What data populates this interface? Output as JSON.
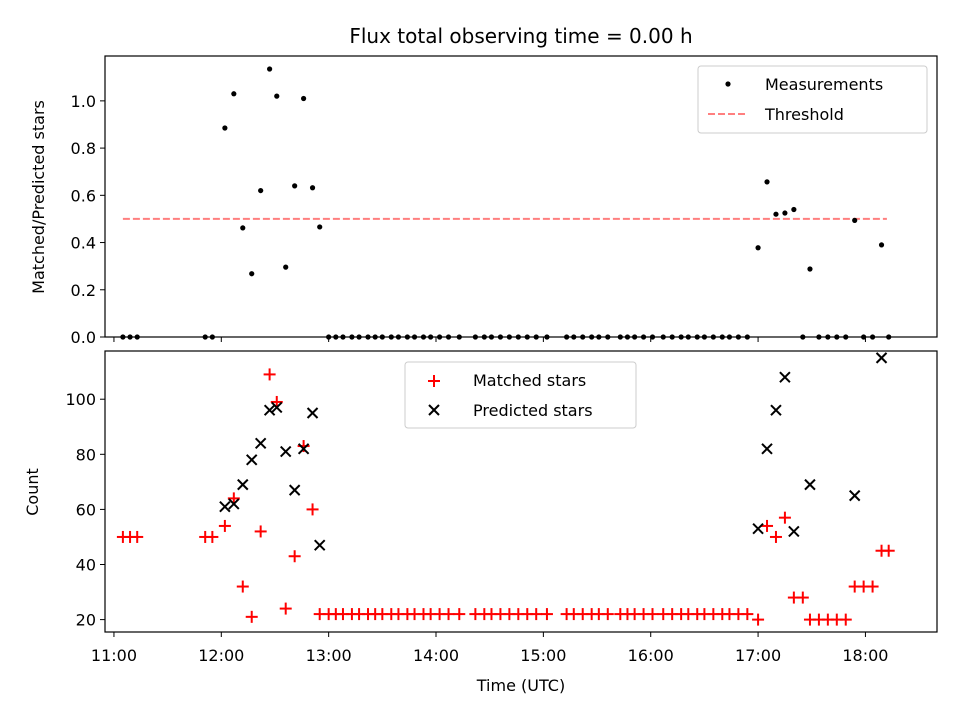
{
  "chart_data": [
    {
      "type": "scatter",
      "title": "Flux total observing time = 0.00 h",
      "xlabel": "",
      "ylabel": "Matched/Predicted stars",
      "xlim": [
        "10:55",
        "18:40"
      ],
      "ylim": [
        0,
        1.19
      ],
      "yticks": [
        0.0,
        0.2,
        0.4,
        0.6,
        0.8,
        1.0
      ],
      "ytick_labels": [
        "0.0",
        "0.2",
        "0.4",
        "0.6",
        "0.8",
        "1.0"
      ],
      "xticks": [
        "11:00",
        "12:00",
        "13:00",
        "14:00",
        "15:00",
        "16:00",
        "17:00",
        "18:00"
      ],
      "legend_position": "top-right",
      "legend": [
        {
          "label": "Measurements",
          "marker": "dot",
          "color": "#000000"
        },
        {
          "label": "Threshold",
          "marker": "dashed-line",
          "color": "#ff7f7f"
        }
      ],
      "threshold": {
        "value": 0.5,
        "x": [
          "11:05",
          "18:12"
        ],
        "color": "#ff7f7f"
      },
      "series": [
        {
          "name": "Measurements",
          "color": "#000000",
          "points": [
            [
              "11:05",
              0.0
            ],
            [
              "11:09",
              0.0
            ],
            [
              "11:13",
              0.0
            ],
            [
              "11:51",
              0.0
            ],
            [
              "11:55",
              0.0
            ],
            [
              "12:02",
              0.885
            ],
            [
              "12:07",
              1.03
            ],
            [
              "12:12",
              0.462
            ],
            [
              "12:17",
              0.268
            ],
            [
              "12:22",
              0.62
            ],
            [
              "12:27",
              1.135
            ],
            [
              "12:31",
              1.02
            ],
            [
              "12:36",
              0.296
            ],
            [
              "12:41",
              0.64
            ],
            [
              "12:46",
              1.01
            ],
            [
              "12:51",
              0.632
            ],
            [
              "12:55",
              0.466
            ],
            [
              "13:00",
              0.0
            ],
            [
              "13:04",
              0.0
            ],
            [
              "13:08",
              0.0
            ],
            [
              "13:13",
              0.0
            ],
            [
              "13:17",
              0.0
            ],
            [
              "13:22",
              0.0
            ],
            [
              "13:26",
              0.0
            ],
            [
              "13:30",
              0.0
            ],
            [
              "13:35",
              0.0
            ],
            [
              "13:39",
              0.0
            ],
            [
              "13:44",
              0.0
            ],
            [
              "13:48",
              0.0
            ],
            [
              "13:53",
              0.0
            ],
            [
              "13:57",
              0.0
            ],
            [
              "14:02",
              0.0
            ],
            [
              "14:07",
              0.0
            ],
            [
              "14:13",
              0.0
            ],
            [
              "14:22",
              0.0
            ],
            [
              "14:27",
              0.0
            ],
            [
              "14:31",
              0.0
            ],
            [
              "14:36",
              0.0
            ],
            [
              "14:41",
              0.0
            ],
            [
              "14:46",
              0.0
            ],
            [
              "14:51",
              0.0
            ],
            [
              "14:56",
              0.0
            ],
            [
              "15:02",
              0.0
            ],
            [
              "15:13",
              0.0
            ],
            [
              "15:17",
              0.0
            ],
            [
              "15:22",
              0.0
            ],
            [
              "15:27",
              0.0
            ],
            [
              "15:31",
              0.0
            ],
            [
              "15:36",
              0.0
            ],
            [
              "15:43",
              0.0
            ],
            [
              "15:47",
              0.0
            ],
            [
              "15:51",
              0.0
            ],
            [
              "15:56",
              0.0
            ],
            [
              "16:01",
              0.0
            ],
            [
              "16:07",
              0.0
            ],
            [
              "16:12",
              0.0
            ],
            [
              "16:17",
              0.0
            ],
            [
              "16:21",
              0.0
            ],
            [
              "16:26",
              0.0
            ],
            [
              "16:30",
              0.0
            ],
            [
              "16:35",
              0.0
            ],
            [
              "16:40",
              0.0
            ],
            [
              "16:44",
              0.0
            ],
            [
              "16:49",
              0.0
            ],
            [
              "16:54",
              0.0
            ],
            [
              "17:00",
              0.378
            ],
            [
              "17:05",
              0.657
            ],
            [
              "17:10",
              0.52
            ],
            [
              "17:15",
              0.525
            ],
            [
              "17:20",
              0.54
            ],
            [
              "17:25",
              0.0
            ],
            [
              "17:29",
              0.288
            ],
            [
              "17:34",
              0.0
            ],
            [
              "17:39",
              0.0
            ],
            [
              "17:44",
              0.0
            ],
            [
              "17:49",
              0.0
            ],
            [
              "17:54",
              0.494
            ],
            [
              "17:59",
              0.0
            ],
            [
              "18:04",
              0.0
            ],
            [
              "18:09",
              0.39
            ],
            [
              "18:13",
              0.0
            ]
          ]
        }
      ]
    },
    {
      "type": "scatter",
      "title": "",
      "xlabel": "Time (UTC)",
      "ylabel": "Count",
      "xlim": [
        "10:55",
        "18:40"
      ],
      "ylim": [
        15.5,
        117.5
      ],
      "yticks": [
        20,
        40,
        60,
        80,
        100
      ],
      "ytick_labels": [
        "20",
        "40",
        "60",
        "80",
        "100"
      ],
      "xticks": [
        "11:00",
        "12:00",
        "13:00",
        "14:00",
        "15:00",
        "16:00",
        "17:00",
        "18:00"
      ],
      "xtick_labels": [
        "11:00",
        "12:00",
        "13:00",
        "14:00",
        "15:00",
        "16:00",
        "17:00",
        "18:00"
      ],
      "legend_position": "top-center",
      "legend": [
        {
          "label": "Matched stars",
          "marker": "plus",
          "color": "#ff0000"
        },
        {
          "label": "Predicted stars",
          "marker": "x",
          "color": "#000000"
        }
      ],
      "series": [
        {
          "name": "Matched stars",
          "marker": "plus",
          "color": "#ff0000",
          "points": [
            [
              "11:05",
              50
            ],
            [
              "11:09",
              50
            ],
            [
              "11:13",
              50
            ],
            [
              "11:51",
              50
            ],
            [
              "11:55",
              50
            ],
            [
              "12:02",
              54
            ],
            [
              "12:07",
              64
            ],
            [
              "12:12",
              32
            ],
            [
              "12:17",
              21
            ],
            [
              "12:22",
              52
            ],
            [
              "12:27",
              109
            ],
            [
              "12:31",
              99
            ],
            [
              "12:36",
              24
            ],
            [
              "12:41",
              43
            ],
            [
              "12:46",
              83
            ],
            [
              "12:51",
              60
            ],
            [
              "12:55",
              22
            ],
            [
              "13:00",
              22
            ],
            [
              "13:04",
              22
            ],
            [
              "13:08",
              22
            ],
            [
              "13:13",
              22
            ],
            [
              "13:17",
              22
            ],
            [
              "13:22",
              22
            ],
            [
              "13:26",
              22
            ],
            [
              "13:30",
              22
            ],
            [
              "13:35",
              22
            ],
            [
              "13:39",
              22
            ],
            [
              "13:44",
              22
            ],
            [
              "13:48",
              22
            ],
            [
              "13:53",
              22
            ],
            [
              "13:57",
              22
            ],
            [
              "14:02",
              22
            ],
            [
              "14:07",
              22
            ],
            [
              "14:13",
              22
            ],
            [
              "14:22",
              22
            ],
            [
              "14:27",
              22
            ],
            [
              "14:31",
              22
            ],
            [
              "14:36",
              22
            ],
            [
              "14:41",
              22
            ],
            [
              "14:46",
              22
            ],
            [
              "14:51",
              22
            ],
            [
              "14:56",
              22
            ],
            [
              "15:02",
              22
            ],
            [
              "15:13",
              22
            ],
            [
              "15:17",
              22
            ],
            [
              "15:22",
              22
            ],
            [
              "15:27",
              22
            ],
            [
              "15:31",
              22
            ],
            [
              "15:36",
              22
            ],
            [
              "15:43",
              22
            ],
            [
              "15:47",
              22
            ],
            [
              "15:51",
              22
            ],
            [
              "15:56",
              22
            ],
            [
              "16:01",
              22
            ],
            [
              "16:07",
              22
            ],
            [
              "16:12",
              22
            ],
            [
              "16:17",
              22
            ],
            [
              "16:21",
              22
            ],
            [
              "16:26",
              22
            ],
            [
              "16:30",
              22
            ],
            [
              "16:35",
              22
            ],
            [
              "16:40",
              22
            ],
            [
              "16:44",
              22
            ],
            [
              "16:49",
              22
            ],
            [
              "16:54",
              22
            ],
            [
              "17:00",
              20
            ],
            [
              "17:05",
              54
            ],
            [
              "17:10",
              50
            ],
            [
              "17:15",
              57
            ],
            [
              "17:20",
              28
            ],
            [
              "17:25",
              28
            ],
            [
              "17:29",
              20
            ],
            [
              "17:34",
              20
            ],
            [
              "17:39",
              20
            ],
            [
              "17:44",
              20
            ],
            [
              "17:49",
              20
            ],
            [
              "17:54",
              32
            ],
            [
              "17:59",
              32
            ],
            [
              "18:04",
              32
            ],
            [
              "18:09",
              45
            ],
            [
              "18:13",
              45
            ]
          ]
        },
        {
          "name": "Predicted stars",
          "marker": "x",
          "color": "#000000",
          "points": [
            [
              "12:02",
              61
            ],
            [
              "12:07",
              62
            ],
            [
              "12:12",
              69
            ],
            [
              "12:17",
              78
            ],
            [
              "12:22",
              84
            ],
            [
              "12:27",
              96
            ],
            [
              "12:31",
              97
            ],
            [
              "12:36",
              81
            ],
            [
              "12:41",
              67
            ],
            [
              "12:46",
              82
            ],
            [
              "12:51",
              95
            ],
            [
              "12:55",
              47
            ],
            [
              "17:00",
              53
            ],
            [
              "17:05",
              82
            ],
            [
              "17:10",
              96
            ],
            [
              "17:15",
              108
            ],
            [
              "17:20",
              52
            ],
            [
              "17:29",
              69
            ],
            [
              "17:54",
              65
            ],
            [
              "18:09",
              115
            ]
          ]
        }
      ]
    }
  ]
}
